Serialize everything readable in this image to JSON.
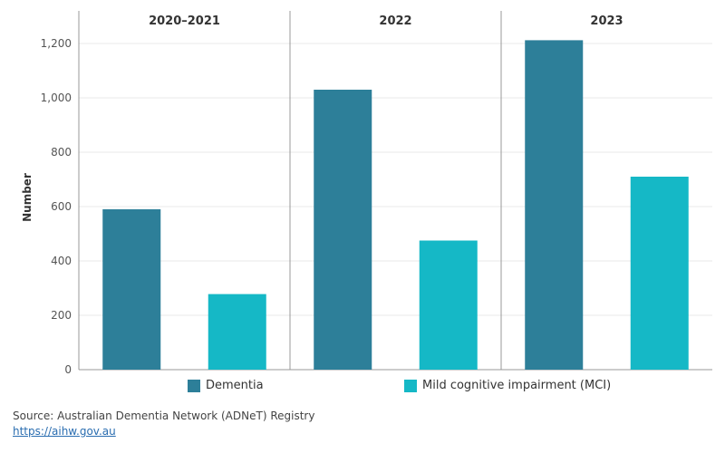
{
  "colors": {
    "dementia": "#2d7f99",
    "mci": "#15b8c6",
    "grid": "#e8e8e8",
    "panel_border": "#999999"
  },
  "chart_data": {
    "type": "bar",
    "ylabel": "Number",
    "ylim": [
      0,
      1320
    ],
    "yticks": [
      0,
      200,
      400,
      600,
      800,
      1000,
      1200
    ],
    "ytick_labels": [
      "0",
      "200",
      "400",
      "600",
      "800",
      "1,000",
      "1,200"
    ],
    "panels": [
      "2020–2021",
      "2022",
      "2023"
    ],
    "series": [
      {
        "name": "Dementia",
        "values": [
          590,
          1030,
          1212
        ]
      },
      {
        "name": "Mild cognitive impairment (MCI)",
        "values": [
          278,
          475,
          710
        ]
      }
    ],
    "legend_position": "bottom"
  },
  "legend": {
    "dementia": "Dementia",
    "mci": "Mild cognitive impairment (MCI)"
  },
  "footer": {
    "source": "Source: Australian Dementia Network (ADNeT) Registry",
    "link": "https://aihw.gov.au"
  }
}
